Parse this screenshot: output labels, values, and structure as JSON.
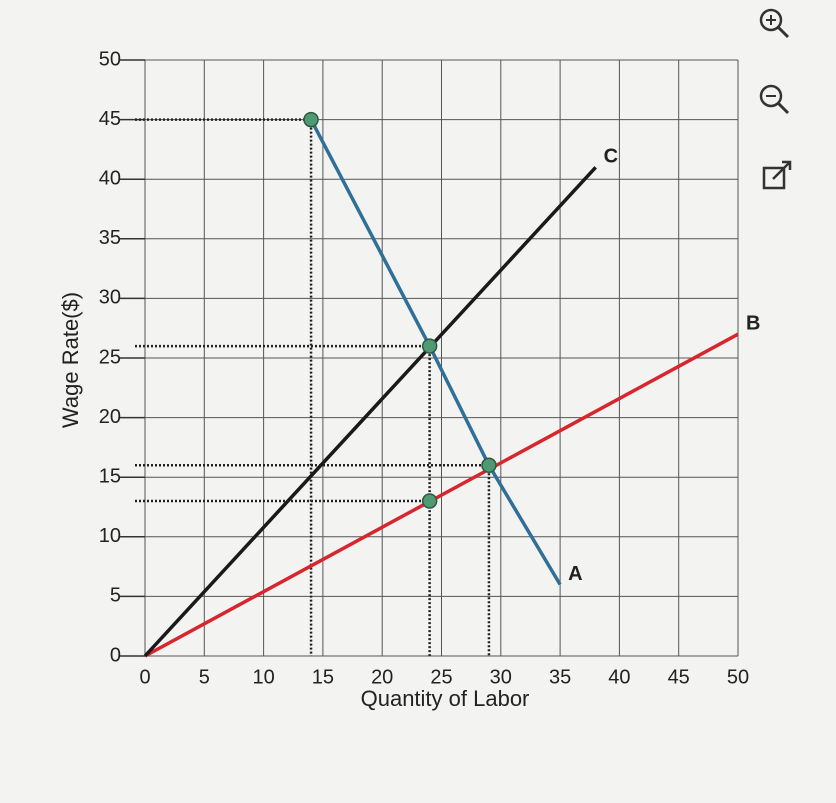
{
  "chart_data": {
    "type": "line",
    "x_label": "Quantity of Labor",
    "y_label": "Wage Rate($)",
    "xlim": [
      0,
      50
    ],
    "ylim": [
      0,
      50
    ],
    "xticks": [
      0,
      5,
      10,
      15,
      20,
      25,
      30,
      35,
      40,
      45,
      50
    ],
    "yticks": [
      0,
      5,
      10,
      15,
      20,
      25,
      30,
      35,
      40,
      45,
      50
    ],
    "grid": true,
    "series": [
      {
        "name": "A",
        "color": "#2f6f98",
        "x": [
          14,
          24,
          29,
          35
        ],
        "values": [
          45,
          26,
          16,
          6
        ]
      },
      {
        "name": "B",
        "color": "#d8262e",
        "x": [
          0,
          50
        ],
        "values": [
          0,
          27
        ]
      },
      {
        "name": "C",
        "color": "#1a1a1a",
        "x": [
          0,
          38
        ],
        "values": [
          0,
          41
        ]
      }
    ],
    "points": {
      "color": "#4f9a72",
      "x": [
        14,
        24,
        29,
        24
      ],
      "values": [
        45,
        26,
        16,
        13
      ]
    }
  }
}
